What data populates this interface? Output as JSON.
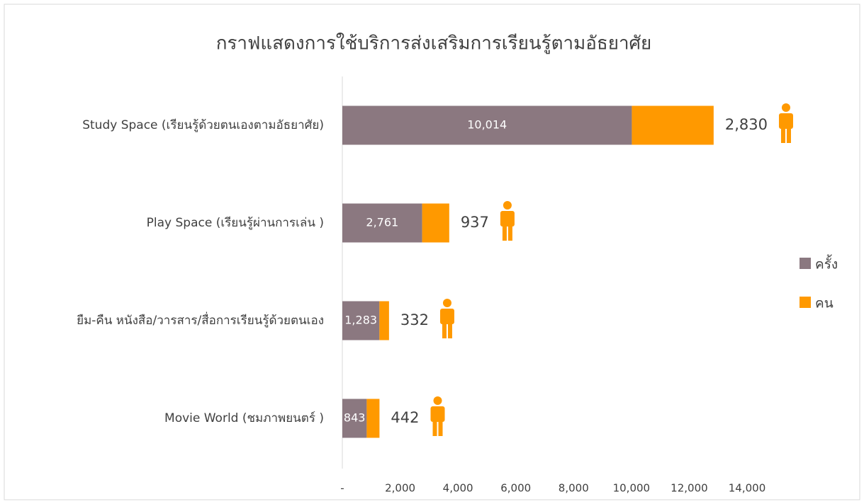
{
  "chart_data": {
    "type": "bar",
    "orientation": "horizontal",
    "stacked": true,
    "title": "กราฟแสดงการใช้บริการส่งเสริมการเรียนรู้ตามอัธยาศัย",
    "categories": [
      "Study Space (เรียนรู้ด้วยตนเองตามอัธยาศัย)",
      "Play Space (เรียนรู้ผ่านการเล่น )",
      "ยืม-คืน หนังสือ/วารสาร/สื่อการเรียนรู้ด้วยตนเอง",
      "Movie World (ชมภาพยนตร์ )"
    ],
    "series": [
      {
        "name": "ครั้ง",
        "color": "#8b7880",
        "values": [
          10014,
          2761,
          1283,
          843
        ],
        "value_labels": [
          "10,014",
          "2,761",
          "1,283",
          "843"
        ]
      },
      {
        "name": "คน",
        "color": "#ff9900",
        "values": [
          2830,
          937,
          332,
          442
        ],
        "value_labels": [
          "2,830",
          "937",
          "332",
          "442"
        ]
      }
    ],
    "xlim": [
      0,
      14000
    ],
    "xticks": [
      {
        "value": 0,
        "label": "-"
      },
      {
        "value": 2000,
        "label": "2,000"
      },
      {
        "value": 4000,
        "label": "4,000"
      },
      {
        "value": 6000,
        "label": "6,000"
      },
      {
        "value": 8000,
        "label": "8,000"
      },
      {
        "value": 10000,
        "label": "10,000"
      },
      {
        "value": 12000,
        "label": "12,000"
      },
      {
        "value": 14000,
        "label": "14,000"
      }
    ],
    "legend": "right"
  }
}
